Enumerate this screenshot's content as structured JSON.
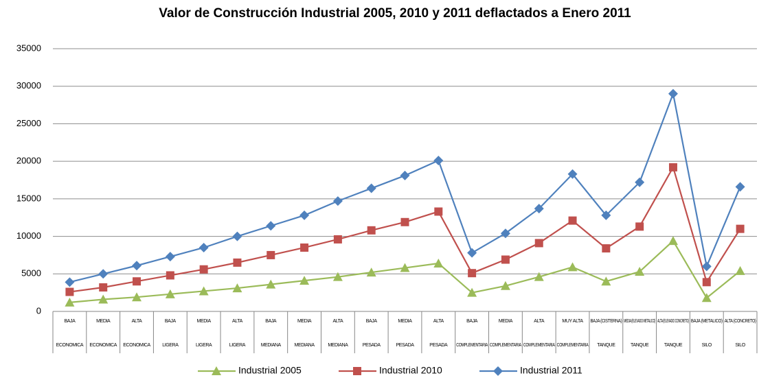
{
  "chart_data": {
    "type": "line",
    "title": "Valor de Construcción Industrial 2005, 2010 y 2011 deflactados a Enero 2011",
    "categories": [
      "BAJA",
      "MEDIA",
      "ALTA",
      "BAJA",
      "MEDIA",
      "ALTA",
      "BAJA",
      "MEDIA",
      "ALTA",
      "BAJA",
      "MEDIA",
      "ALTA",
      "BAJA",
      "MEDIA",
      "ALTA",
      "MUY ALTA",
      "BAJA (CISTERNA)",
      "MEDIA (ELEVADO METALICO)",
      "ALTA (ELEVADO CONCRETO)",
      "BAJA (METALICO)",
      "ALTA (CONCRETO)"
    ],
    "category_groups": [
      "ECONOMICA",
      "ECONOMICA",
      "ECONOMICA",
      "LIGERA",
      "LIGERA",
      "LIGERA",
      "MEDIANA",
      "MEDIANA",
      "MEDIANA",
      "PESADA",
      "PESADA",
      "PESADA",
      "COMPLEMENTARIA",
      "COMPLEMENTARIA",
      "COMPLEMENTARIA",
      "COMPLEMENTARIA",
      "TANQUE",
      "TANQUE",
      "TANQUE",
      "SILO",
      "SILO"
    ],
    "series": [
      {
        "name": "Industrial 2005",
        "color": "#9bbb59",
        "marker": "triangle",
        "values": [
          1200,
          1600,
          1900,
          2300,
          2700,
          3100,
          3600,
          4100,
          4600,
          5200,
          5800,
          6400,
          2500,
          3400,
          4600,
          5900,
          4000,
          5300,
          9400,
          1800,
          5400
        ]
      },
      {
        "name": "Industrial 2010",
        "color": "#c0504d",
        "marker": "square",
        "values": [
          2600,
          3200,
          4000,
          4800,
          5600,
          6500,
          7500,
          8500,
          9600,
          10800,
          11900,
          13300,
          5100,
          6900,
          9100,
          12100,
          8400,
          11300,
          19200,
          3900,
          11000
        ]
      },
      {
        "name": "Industrial 2011",
        "color": "#4f81bd",
        "marker": "diamond",
        "values": [
          3900,
          5000,
          6100,
          7300,
          8500,
          10000,
          11400,
          12800,
          14700,
          16400,
          18100,
          20100,
          7800,
          10400,
          13700,
          18300,
          12800,
          17200,
          29000,
          6000,
          16600
        ]
      }
    ],
    "ylim": [
      0,
      35000
    ],
    "yticks": [
      0,
      5000,
      10000,
      15000,
      20000,
      25000,
      30000,
      35000
    ],
    "grid": true,
    "legend": "bottom"
  }
}
